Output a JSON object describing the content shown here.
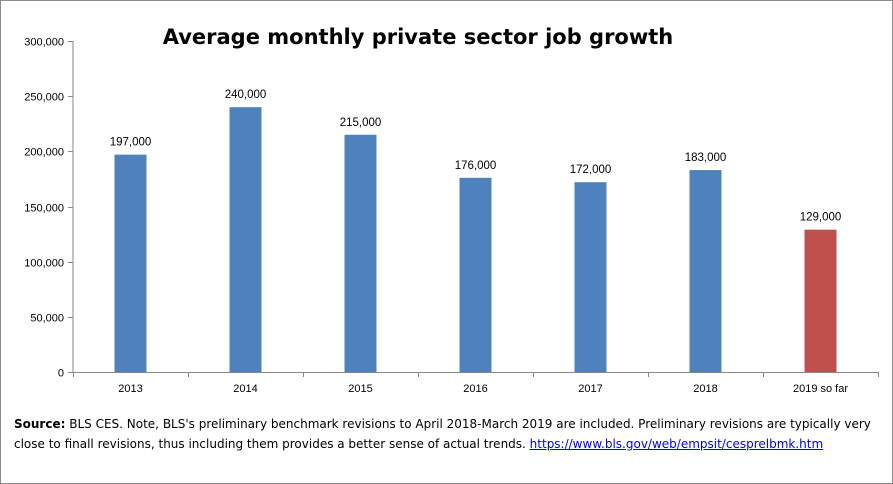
{
  "chart_data": {
    "type": "bar",
    "title": "Average monthly private sector job growth",
    "xlabel": "",
    "ylabel": "",
    "categories": [
      "2013",
      "2014",
      "2015",
      "2016",
      "2017",
      "2018",
      "2019 so far"
    ],
    "values": [
      197000,
      240000,
      215000,
      176000,
      172000,
      183000,
      129000
    ],
    "data_labels": [
      "197,000",
      "240,000",
      "215,000",
      "176,000",
      "172,000",
      "183,000",
      "129,000"
    ],
    "bar_colors": [
      "#4f81bd",
      "#4f81bd",
      "#4f81bd",
      "#4f81bd",
      "#4f81bd",
      "#4f81bd",
      "#c0504d"
    ],
    "ylim": [
      0,
      300000
    ],
    "y_ticks": [
      0,
      50000,
      100000,
      150000,
      200000,
      250000,
      300000
    ],
    "y_tick_labels": [
      "0",
      "50,000",
      "100,000",
      "150,000",
      "200,000",
      "250,000",
      "300,000"
    ],
    "grid": false,
    "legend": "none"
  },
  "note": {
    "source_label": "Source:",
    "text": " BLS CES. Note, BLS's preliminary benchmark revisions to April 2018-March 2019  are included. Preliminary revisions are typically very close to finall revisions, thus including them provides a better sense of actual trends. ",
    "link_text": "https://www.bls.gov/web/empsit/cesprelbmk.htm"
  },
  "colors": {
    "axis": "#868686",
    "primary_bar": "#4f81bd",
    "highlight_bar": "#c0504d"
  }
}
